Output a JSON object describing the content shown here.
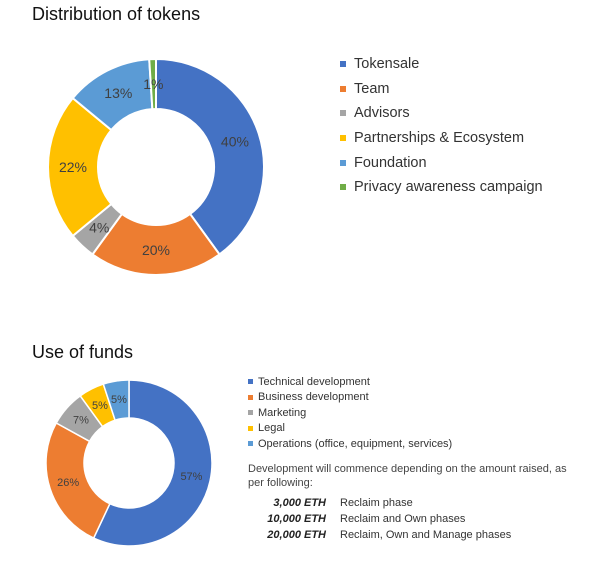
{
  "chart_data": [
    {
      "type": "pie",
      "title": "Distribution of tokens",
      "categories": [
        "Tokensale",
        "Team",
        "Advisors",
        "Partnerships & Ecosystem",
        "Foundation",
        "Privacy awareness campaign"
      ],
      "values": [
        40,
        20,
        4,
        22,
        13,
        1
      ],
      "value_labels": [
        "40%",
        "20%",
        "4%",
        "22%",
        "13%",
        "1%"
      ],
      "colors": [
        "#4472c4",
        "#ed7d31",
        "#a5a5a5",
        "#ffc000",
        "#5b9bd5",
        "#70ad47"
      ],
      "donut": true,
      "legend_placement": "right"
    },
    {
      "type": "pie",
      "title": "Use of funds",
      "categories": [
        "Technical development",
        "Business development",
        "Marketing",
        "Legal",
        "Operations (office, equipment, services)"
      ],
      "values": [
        57,
        26,
        7,
        5,
        5
      ],
      "value_labels": [
        "57%",
        "26%",
        "7%",
        "5%",
        "5%"
      ],
      "colors": [
        "#4472c4",
        "#ed7d31",
        "#a5a5a5",
        "#ffc000",
        "#5b9bd5"
      ],
      "donut": true,
      "legend_placement": "right"
    }
  ],
  "funds_note": {
    "intro": "Development will commence depending on the amount raised, as per following:",
    "phases": [
      {
        "amount": "3,000 ETH",
        "description": "Reclaim phase"
      },
      {
        "amount": "10,000 ETH",
        "description": "Reclaim and Own phases"
      },
      {
        "amount": "20,000 ETH",
        "description": "Reclaim, Own and Manage phases"
      }
    ]
  }
}
